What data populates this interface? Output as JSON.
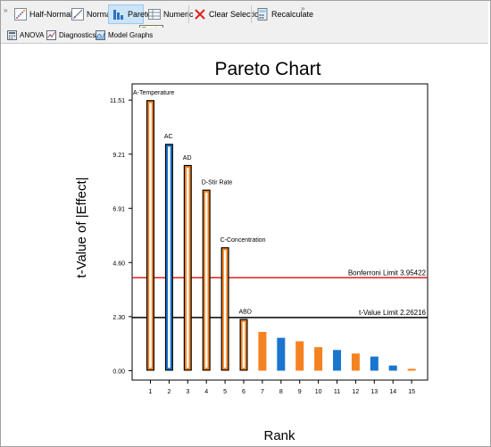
{
  "toolbar": {
    "more_left": "»",
    "more_right": "»",
    "buttons": [
      {
        "label": "Half-Normal",
        "icon": "half-normal-plot-icon"
      },
      {
        "label": "Normal",
        "icon": "normal-plot-icon"
      },
      {
        "label": "Pareto",
        "icon": "pareto-chart-icon"
      },
      {
        "label": "Numeric",
        "icon": "numeric-table-icon"
      },
      {
        "label": "Clear Selection",
        "icon": "clear-x-icon"
      },
      {
        "label": "Recalculate",
        "icon": "recalculate-icon"
      }
    ],
    "tooltip": "Pareto"
  },
  "subtoolbar": {
    "buttons": [
      {
        "label": "ANOVA",
        "icon": "anova-calculator-icon"
      },
      {
        "label": "Diagnostics",
        "icon": "diagnostics-icon"
      },
      {
        "label": "Model Graphs",
        "icon": "model-graphs-icon"
      }
    ]
  },
  "colors": {
    "orange": "#f58220",
    "blue": "#1a75cf",
    "bonferroni_line": "#e02020",
    "tvalue_line": "#000000"
  },
  "chart_data": {
    "type": "bar",
    "title": "Pareto Chart",
    "xlabel": "Rank",
    "ylabel": "t-Value of |Effect|",
    "ylim": [
      -0.4,
      12.2
    ],
    "yticks": [
      0.0,
      2.3,
      4.6,
      6.91,
      9.21,
      11.51
    ],
    "ytick_labels": [
      "0.00",
      "2.30",
      "4.60",
      "6.91",
      "9.21",
      "11.51"
    ],
    "categories": [
      "1",
      "2",
      "3",
      "4",
      "5",
      "6",
      "7",
      "8",
      "9",
      "10",
      "11",
      "12",
      "13",
      "14",
      "15"
    ],
    "values": [
      11.51,
      9.65,
      8.75,
      7.7,
      5.25,
      2.2,
      1.65,
      1.4,
      1.25,
      1.0,
      0.88,
      0.73,
      0.6,
      0.22,
      0.08
    ],
    "signs": [
      "positive",
      "negative",
      "positive",
      "positive",
      "positive",
      "positive",
      "positive",
      "negative",
      "positive",
      "positive",
      "negative",
      "positive",
      "negative",
      "negative",
      "positive"
    ],
    "selected": [
      true,
      true,
      true,
      true,
      true,
      true,
      false,
      false,
      false,
      false,
      false,
      false,
      false,
      false,
      false
    ],
    "bar_labels": [
      "A-Temperature",
      "AC",
      "AD",
      "D-Stir Rate",
      "C-Concentration",
      "ABD",
      "",
      "",
      "",
      "",
      "",
      "",
      "",
      "",
      ""
    ],
    "reference_lines": [
      {
        "name": "Bonferroni Limit",
        "value": 3.95422,
        "label": "Bonferroni Limit 3.95422"
      },
      {
        "name": "t-Value Limit",
        "value": 2.26216,
        "label": "t-Value Limit 2.26216"
      }
    ],
    "grid": false
  }
}
